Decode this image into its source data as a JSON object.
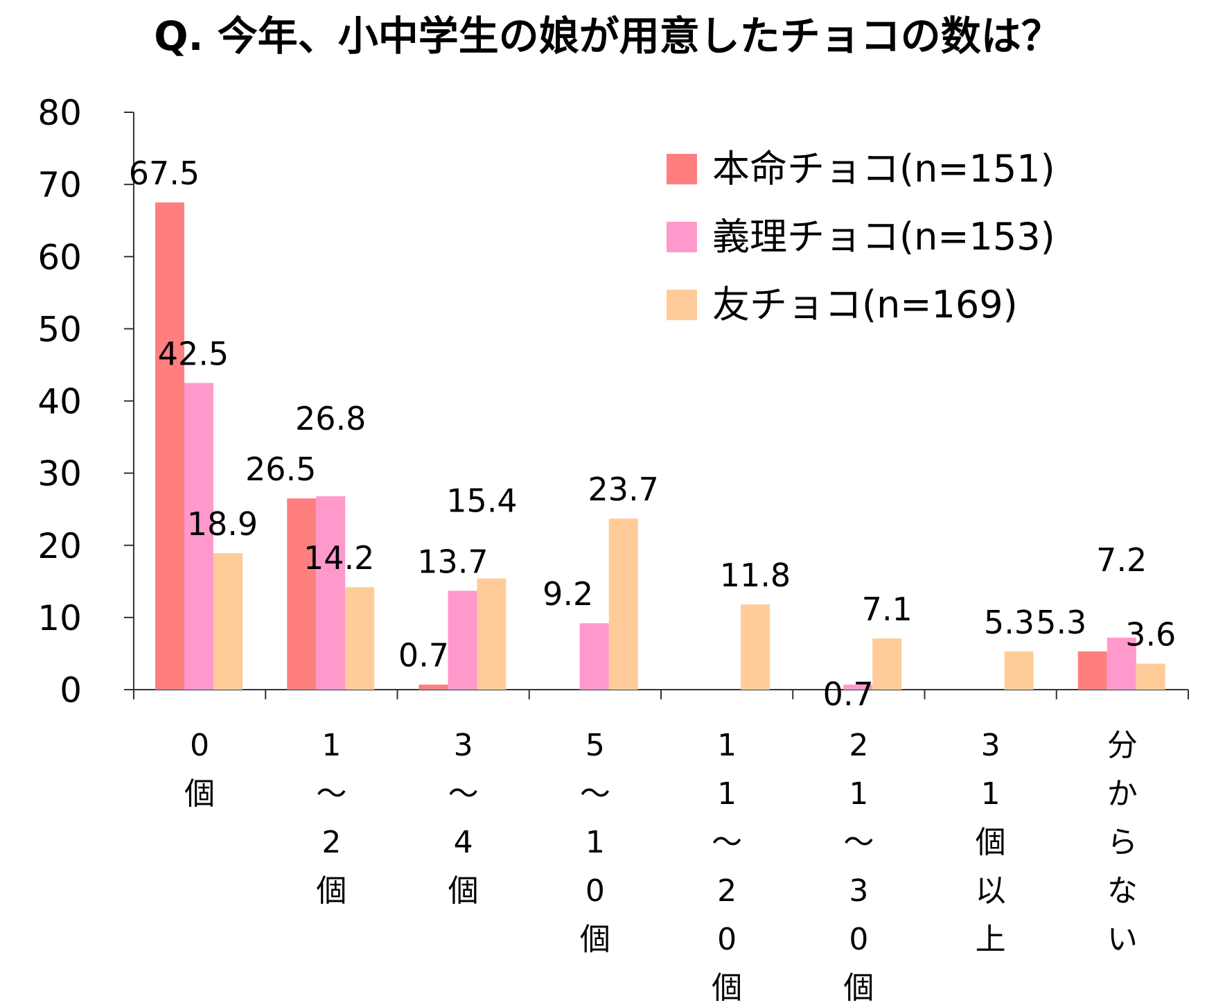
{
  "chart_data": {
    "type": "bar",
    "title": "Q. 今年、小中学生の娘が用意したチョコの数は？",
    "categories": [
      [
        "0",
        "個"
      ],
      [
        "1",
        "〜",
        "2",
        "個"
      ],
      [
        "3",
        "〜",
        "4",
        "個"
      ],
      [
        "5",
        "〜",
        "1",
        "0",
        "個"
      ],
      [
        "1",
        "1",
        "〜",
        "2",
        "0",
        "個"
      ],
      [
        "2",
        "1",
        "〜",
        "3",
        "0",
        "個"
      ],
      [
        "3",
        "1",
        "個",
        "以",
        "上"
      ],
      [
        "分",
        "か",
        "ら",
        "な",
        "い"
      ]
    ],
    "series": [
      {
        "name": "本命チョコ(n=151)",
        "color": "#ff7f7f",
        "values": [
          67.5,
          26.5,
          0.7,
          null,
          null,
          null,
          null,
          5.3
        ]
      },
      {
        "name": "義理チョコ(n=153)",
        "color": "#ff99cc",
        "values": [
          42.5,
          26.8,
          13.7,
          9.2,
          null,
          0.7,
          null,
          7.2
        ]
      },
      {
        "name": "友チョコ(n=169)",
        "color": "#ffcc99",
        "values": [
          18.9,
          14.2,
          15.4,
          23.7,
          11.8,
          7.1,
          5.3,
          3.6
        ]
      }
    ],
    "ylim": [
      0,
      80
    ],
    "yticks": [
      "0",
      "10",
      "20",
      "30",
      "40",
      "50",
      "60",
      "70",
      "80"
    ],
    "legend_position": "top-right",
    "grid": false
  }
}
